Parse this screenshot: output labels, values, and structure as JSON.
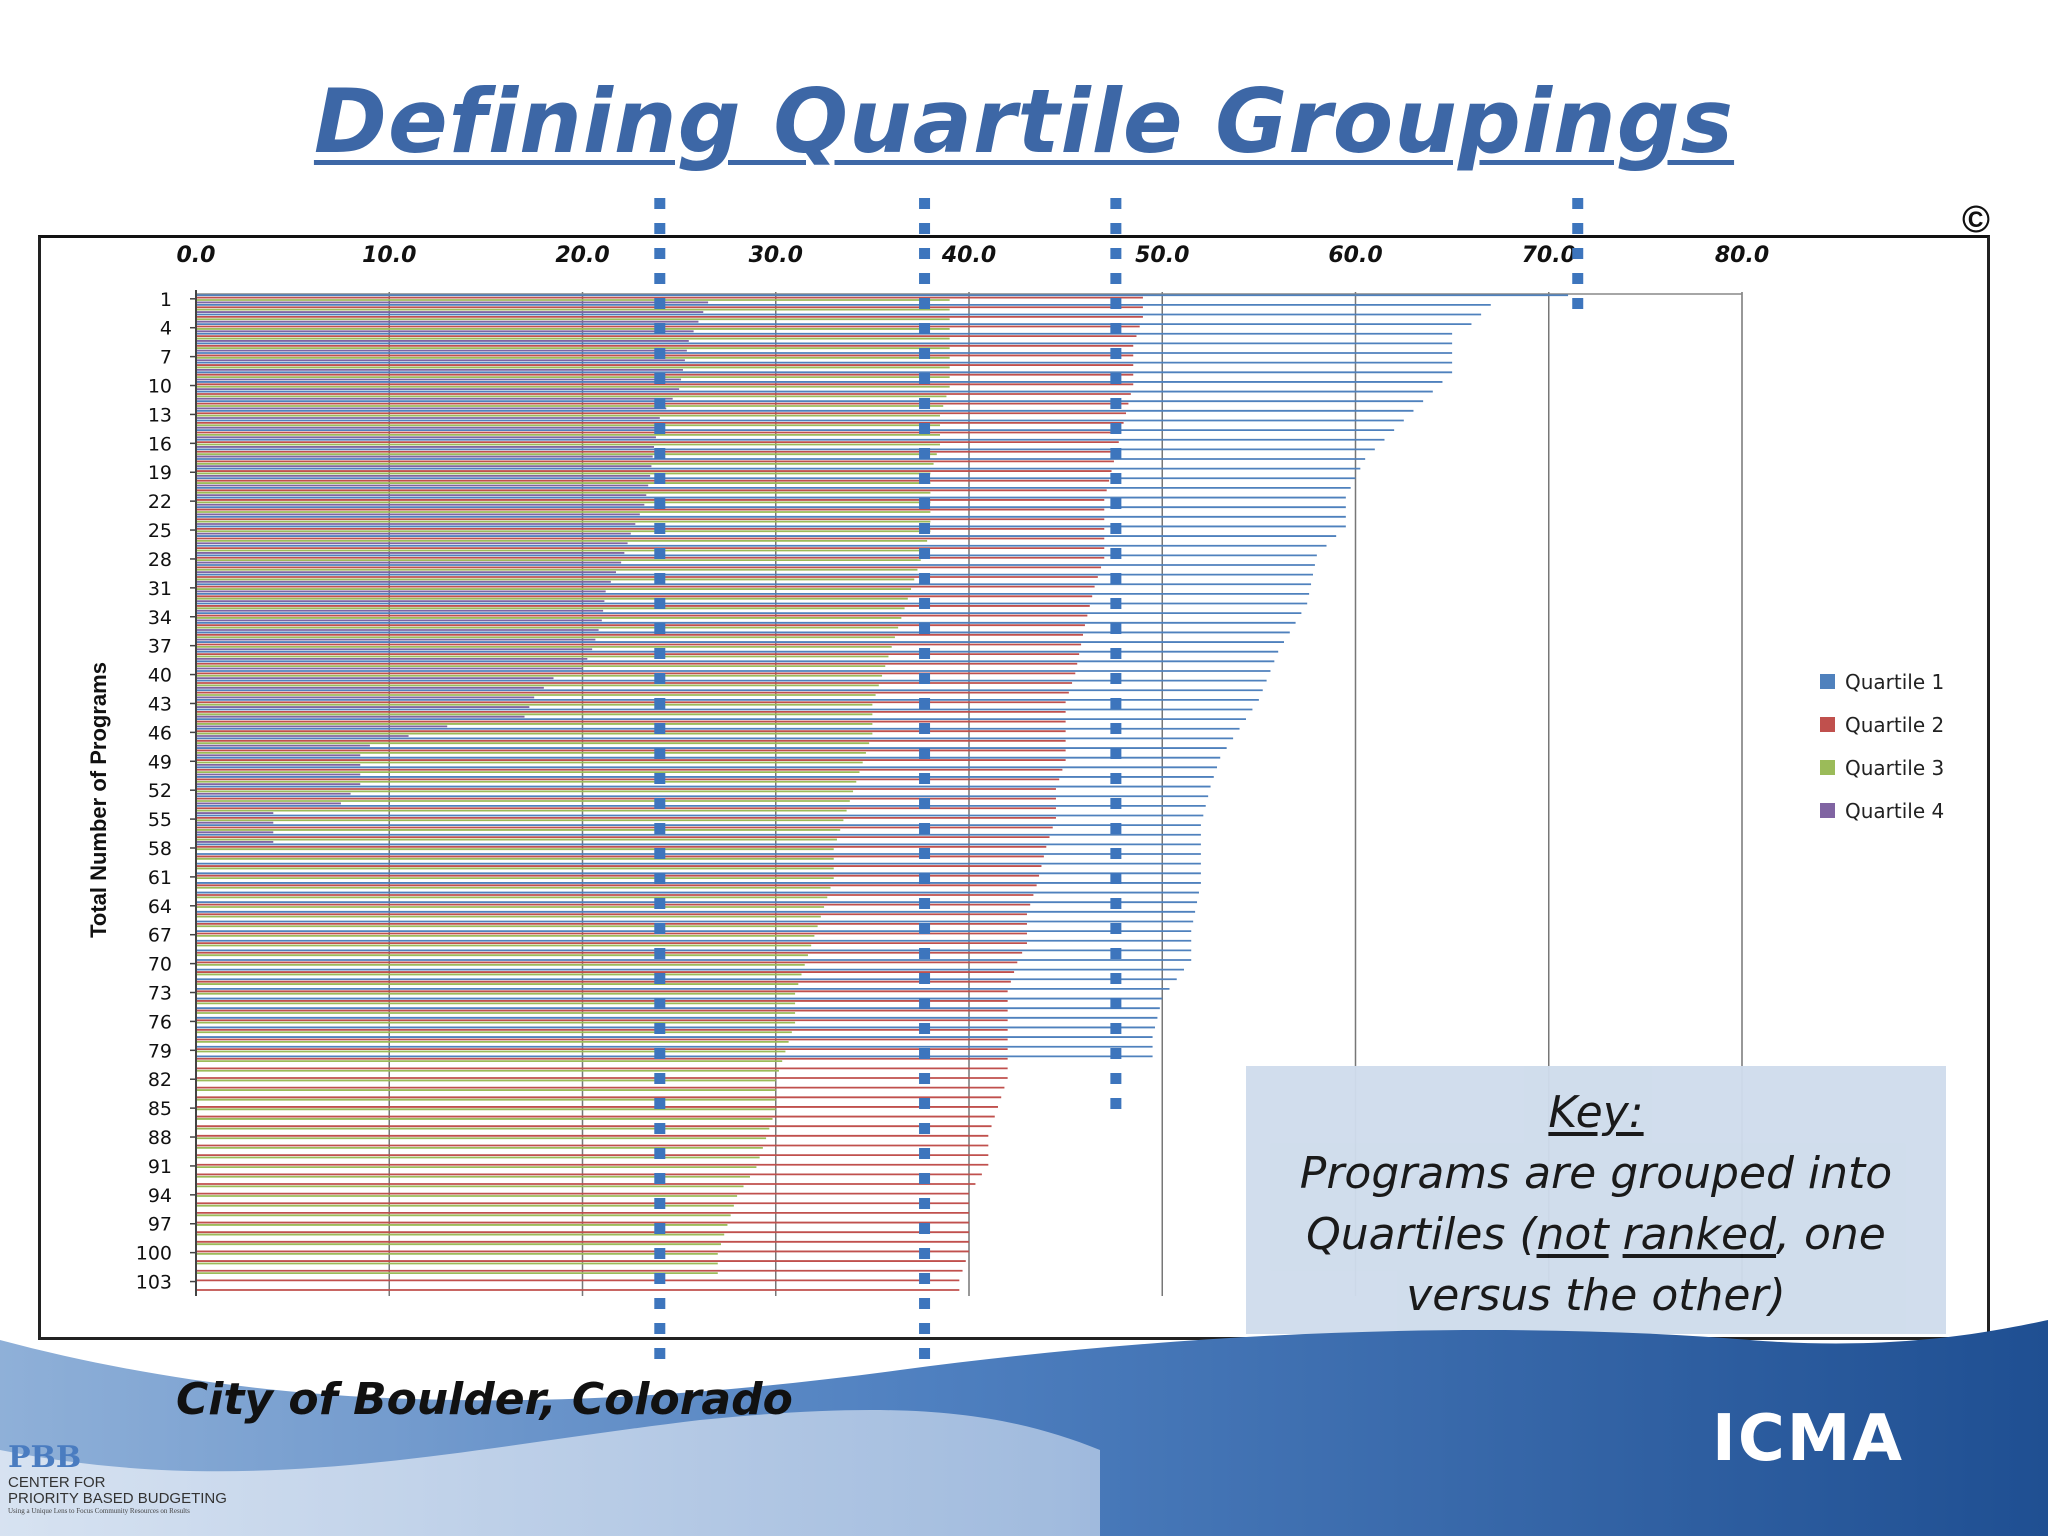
{
  "title": "Defining Quartile Groupings",
  "copyright_symbol": "©",
  "footer": {
    "city": "City of Boulder, Colorado",
    "pbb_mark": "PBB",
    "pbb_line1": "CENTER FOR",
    "pbb_line2": "PRIORITY BASED BUDGETING",
    "pbb_tagline": "Using a Unique Lens to Focus Community Resources on Results",
    "icma_logo": "ICMA"
  },
  "key": {
    "heading": "Key:",
    "text_parts": [
      "Programs are grouped into",
      "Quartiles (",
      "not",
      " ",
      "ranked",
      ", one",
      "versus the other)"
    ]
  },
  "colors": {
    "title": "#3d67a6",
    "q1": "#4f81bd",
    "q2": "#c0504d",
    "q3": "#9bbb59",
    "q4": "#8064a2",
    "divider": "#3d75bd",
    "key_bg": "#cfdcec",
    "wave": "#2a62a6"
  },
  "chart_data": {
    "type": "bar",
    "orientation": "horizontal",
    "ylabel": "Total  Number of Programs",
    "xlim": [
      0,
      80
    ],
    "x_ticks": [
      "0.0",
      "10.0",
      "20.0",
      "30.0",
      "40.0",
      "50.0",
      "60.0",
      "70.0",
      "80.0"
    ],
    "y_ticks": [
      "1",
      "4",
      "7",
      "10",
      "13",
      "16",
      "19",
      "22",
      "25",
      "28",
      "31",
      "34",
      "37",
      "40",
      "43",
      "46",
      "49",
      "52",
      "55",
      "58",
      "61",
      "64",
      "67",
      "70",
      "73",
      "76",
      "79",
      "82",
      "85",
      "88",
      "91",
      "94",
      "97",
      "100",
      "103"
    ],
    "grid": true,
    "legend_position": "right",
    "series": [
      {
        "name": "Quartile 1",
        "color": "#4f81bd",
        "anchors": [
          [
            1,
            71
          ],
          [
            2,
            67
          ],
          [
            4,
            66
          ],
          [
            5,
            65
          ],
          [
            7,
            65
          ],
          [
            9,
            65
          ],
          [
            11,
            64
          ],
          [
            13,
            63
          ],
          [
            15,
            62
          ],
          [
            18,
            60.5
          ],
          [
            20,
            60
          ],
          [
            22,
            59.5
          ],
          [
            25,
            59.5
          ],
          [
            28,
            58
          ],
          [
            33,
            57.5
          ],
          [
            38,
            56
          ],
          [
            43,
            55
          ],
          [
            46,
            54
          ],
          [
            49,
            53
          ],
          [
            52,
            52.5
          ],
          [
            56,
            52
          ],
          [
            62,
            52
          ],
          [
            67,
            51.5
          ],
          [
            70,
            51.5
          ],
          [
            74,
            50
          ],
          [
            78,
            49.5
          ],
          [
            80,
            49.5
          ]
        ],
        "last_program": 80
      },
      {
        "name": "Quartile 2",
        "color": "#c0504d",
        "anchors": [
          [
            1,
            49
          ],
          [
            3,
            49
          ],
          [
            6,
            48.5
          ],
          [
            10,
            48.5
          ],
          [
            14,
            48
          ],
          [
            18,
            47.5
          ],
          [
            22,
            47
          ],
          [
            25,
            47
          ],
          [
            28,
            47
          ],
          [
            31,
            46.5
          ],
          [
            35,
            46
          ],
          [
            40,
            45.5
          ],
          [
            43,
            45
          ],
          [
            46,
            45
          ],
          [
            49,
            45
          ],
          [
            52,
            44.5
          ],
          [
            55,
            44.5
          ],
          [
            58,
            44
          ],
          [
            62,
            43.5
          ],
          [
            65,
            43
          ],
          [
            68,
            43
          ],
          [
            70,
            42.5
          ],
          [
            73,
            42
          ],
          [
            75,
            42
          ],
          [
            79,
            42
          ],
          [
            82,
            42
          ],
          [
            85,
            41.5
          ],
          [
            88,
            41
          ],
          [
            91,
            41
          ],
          [
            94,
            40
          ],
          [
            97,
            40
          ],
          [
            100,
            40
          ],
          [
            103,
            39.5
          ]
        ],
        "last_program": 104
      },
      {
        "name": "Quartile 3",
        "color": "#9bbb59",
        "anchors": [
          [
            1,
            39
          ],
          [
            5,
            39
          ],
          [
            10,
            39
          ],
          [
            13,
            38.5
          ],
          [
            16,
            38.5
          ],
          [
            19,
            38
          ],
          [
            22,
            38
          ],
          [
            25,
            38
          ],
          [
            28,
            37.5
          ],
          [
            31,
            37
          ],
          [
            34,
            36.5
          ],
          [
            37,
            36
          ],
          [
            40,
            35.5
          ],
          [
            43,
            35
          ],
          [
            46,
            35
          ],
          [
            49,
            34.5
          ],
          [
            52,
            34
          ],
          [
            55,
            33.5
          ],
          [
            58,
            33
          ],
          [
            61,
            33
          ],
          [
            64,
            32.5
          ],
          [
            67,
            32
          ],
          [
            70,
            31.5
          ],
          [
            73,
            31
          ],
          [
            76,
            31
          ],
          [
            79,
            30.5
          ],
          [
            82,
            30
          ],
          [
            85,
            30
          ],
          [
            88,
            29.5
          ],
          [
            91,
            29
          ],
          [
            94,
            28
          ],
          [
            97,
            27.5
          ],
          [
            100,
            27
          ],
          [
            102,
            27
          ]
        ],
        "last_program": 102
      },
      {
        "name": "Quartile 4",
        "color": "#8064a2",
        "anchors": [
          [
            1,
            26.5
          ],
          [
            3,
            26
          ],
          [
            5,
            25.5
          ],
          [
            8,
            25.2
          ],
          [
            10,
            25
          ],
          [
            13,
            24
          ],
          [
            16,
            23.7
          ],
          [
            19,
            23.5
          ],
          [
            22,
            23.2
          ],
          [
            25,
            22.5
          ],
          [
            28,
            22
          ],
          [
            31,
            21.2
          ],
          [
            34,
            21
          ],
          [
            37,
            20.5
          ],
          [
            39,
            20
          ],
          [
            40,
            18.5
          ],
          [
            42,
            17.5
          ],
          [
            44,
            17
          ],
          [
            45,
            13
          ],
          [
            46,
            11
          ],
          [
            47,
            9
          ],
          [
            48,
            8.5
          ],
          [
            49,
            8.5
          ],
          [
            50,
            8.5
          ],
          [
            51,
            8.5
          ],
          [
            52,
            8
          ],
          [
            53,
            7.5
          ],
          [
            54,
            4
          ],
          [
            55,
            4
          ],
          [
            56,
            4
          ],
          [
            57,
            4
          ]
        ],
        "last_program": 57
      }
    ],
    "divider_values": [
      24,
      37.7,
      47.6,
      71.5
    ]
  }
}
